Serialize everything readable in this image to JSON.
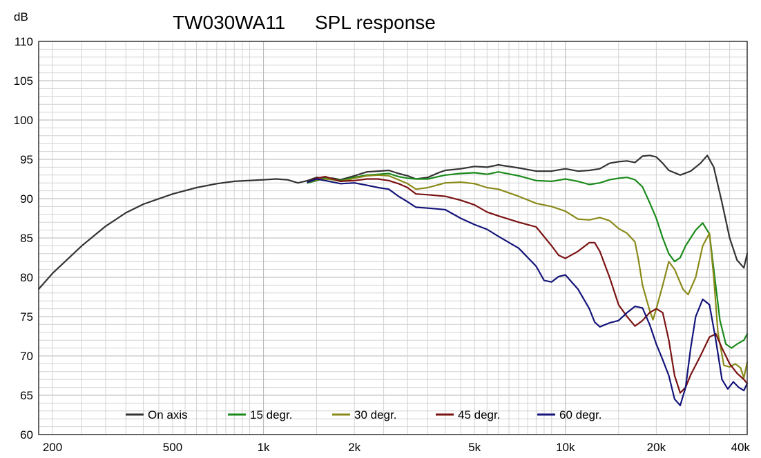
{
  "chart_data": {
    "type": "line",
    "title": "TW030WA11",
    "subtitle": "SPL response",
    "ylabel": "dB",
    "xscale": "log",
    "xlim": [
      180,
      40000
    ],
    "ylim": [
      60,
      110
    ],
    "yticks": [
      60,
      65,
      70,
      75,
      80,
      85,
      90,
      95,
      100,
      105,
      110
    ],
    "xticks": [
      {
        "value": 200,
        "label": "200"
      },
      {
        "value": 500,
        "label": "500"
      },
      {
        "value": 1000,
        "label": "1k"
      },
      {
        "value": 2000,
        "label": "2k"
      },
      {
        "value": 5000,
        "label": "5k"
      },
      {
        "value": 10000,
        "label": "10k"
      },
      {
        "value": 20000,
        "label": "20k"
      },
      {
        "value": 40000,
        "label": "40k"
      }
    ],
    "grid": true,
    "legend_position": "bottom",
    "series": [
      {
        "name": "On axis",
        "color": "#333333",
        "points": [
          [
            180,
            78.5
          ],
          [
            200,
            80.5
          ],
          [
            250,
            84
          ],
          [
            300,
            86.5
          ],
          [
            350,
            88.2
          ],
          [
            400,
            89.3
          ],
          [
            500,
            90.6
          ],
          [
            600,
            91.4
          ],
          [
            700,
            91.9
          ],
          [
            800,
            92.2
          ],
          [
            1000,
            92.4
          ],
          [
            1100,
            92.5
          ],
          [
            1200,
            92.4
          ],
          [
            1300,
            92.0
          ],
          [
            1400,
            92.3
          ],
          [
            1500,
            92.7
          ],
          [
            1600,
            92.6
          ],
          [
            1700,
            92.6
          ],
          [
            1800,
            92.4
          ],
          [
            2000,
            92.9
          ],
          [
            2200,
            93.4
          ],
          [
            2400,
            93.5
          ],
          [
            2600,
            93.6
          ],
          [
            2800,
            93.2
          ],
          [
            3000,
            92.9
          ],
          [
            3200,
            92.5
          ],
          [
            3500,
            92.7
          ],
          [
            3800,
            93.3
          ],
          [
            4000,
            93.6
          ],
          [
            4500,
            93.8
          ],
          [
            5000,
            94.1
          ],
          [
            5500,
            94.0
          ],
          [
            6000,
            94.3
          ],
          [
            7000,
            93.9
          ],
          [
            8000,
            93.5
          ],
          [
            9000,
            93.5
          ],
          [
            10000,
            93.8
          ],
          [
            11000,
            93.5
          ],
          [
            12000,
            93.6
          ],
          [
            13000,
            93.8
          ],
          [
            14000,
            94.5
          ],
          [
            15000,
            94.7
          ],
          [
            16000,
            94.8
          ],
          [
            17000,
            94.6
          ],
          [
            18000,
            95.4
          ],
          [
            19000,
            95.5
          ],
          [
            20000,
            95.3
          ],
          [
            21000,
            94.5
          ],
          [
            22000,
            93.6
          ],
          [
            24000,
            93.0
          ],
          [
            26000,
            93.5
          ],
          [
            28000,
            94.5
          ],
          [
            29500,
            95.5
          ],
          [
            31000,
            94.0
          ],
          [
            33000,
            89.5
          ],
          [
            35000,
            85
          ],
          [
            37000,
            82.2
          ],
          [
            39000,
            81.2
          ],
          [
            40000,
            83.0
          ]
        ]
      },
      {
        "name": "15 degr.",
        "color": "#1a8a1a",
        "points": [
          [
            1400,
            92.0
          ],
          [
            1500,
            92.3
          ],
          [
            1600,
            92.6
          ],
          [
            1700,
            92.5
          ],
          [
            1800,
            92.3
          ],
          [
            2000,
            92.7
          ],
          [
            2200,
            93.0
          ],
          [
            2400,
            93.1
          ],
          [
            2600,
            93.2
          ],
          [
            2800,
            92.8
          ],
          [
            3000,
            92.6
          ],
          [
            3200,
            92.5
          ],
          [
            3500,
            92.5
          ],
          [
            4000,
            93.0
          ],
          [
            4500,
            93.2
          ],
          [
            5000,
            93.3
          ],
          [
            5500,
            93.1
          ],
          [
            6000,
            93.4
          ],
          [
            7000,
            92.9
          ],
          [
            8000,
            92.3
          ],
          [
            9000,
            92.2
          ],
          [
            10000,
            92.5
          ],
          [
            11000,
            92.2
          ],
          [
            12000,
            91.8
          ],
          [
            13000,
            92.0
          ],
          [
            14000,
            92.4
          ],
          [
            15000,
            92.6
          ],
          [
            16000,
            92.7
          ],
          [
            17000,
            92.4
          ],
          [
            18000,
            91.5
          ],
          [
            19000,
            89.5
          ],
          [
            20000,
            87.5
          ],
          [
            21000,
            85
          ],
          [
            22000,
            83
          ],
          [
            23000,
            82
          ],
          [
            24000,
            82.5
          ],
          [
            25000,
            84
          ],
          [
            27000,
            86
          ],
          [
            28500,
            86.9
          ],
          [
            30000,
            85.5
          ],
          [
            31000,
            81
          ],
          [
            32500,
            74.5
          ],
          [
            34000,
            71.5
          ],
          [
            35500,
            71
          ],
          [
            37000,
            71.5
          ],
          [
            39000,
            72
          ],
          [
            40000,
            72.8
          ]
        ]
      },
      {
        "name": "30 degr.",
        "color": "#8a8a1a",
        "points": [
          [
            1400,
            92.1
          ],
          [
            1500,
            92.4
          ],
          [
            1600,
            92.5
          ],
          [
            1700,
            92.4
          ],
          [
            1800,
            92.2
          ],
          [
            2000,
            92.6
          ],
          [
            2200,
            92.9
          ],
          [
            2400,
            93.0
          ],
          [
            2600,
            92.9
          ],
          [
            2800,
            92.4
          ],
          [
            3000,
            91.9
          ],
          [
            3200,
            91.2
          ],
          [
            3500,
            91.4
          ],
          [
            4000,
            92.0
          ],
          [
            4500,
            92.1
          ],
          [
            5000,
            91.9
          ],
          [
            5500,
            91.4
          ],
          [
            6000,
            91.2
          ],
          [
            7000,
            90.3
          ],
          [
            8000,
            89.4
          ],
          [
            9000,
            89.0
          ],
          [
            10000,
            88.4
          ],
          [
            11000,
            87.4
          ],
          [
            12000,
            87.3
          ],
          [
            13000,
            87.6
          ],
          [
            14000,
            87.2
          ],
          [
            15000,
            86.2
          ],
          [
            16000,
            85.6
          ],
          [
            17000,
            84.5
          ],
          [
            17500,
            82
          ],
          [
            18000,
            79
          ],
          [
            19000,
            75.8
          ],
          [
            19500,
            74.6
          ],
          [
            20000,
            76
          ],
          [
            21000,
            79
          ],
          [
            22000,
            82
          ],
          [
            23000,
            81
          ],
          [
            24500,
            78.5
          ],
          [
            25500,
            77.8
          ],
          [
            27000,
            80
          ],
          [
            28500,
            84
          ],
          [
            30000,
            85.6
          ],
          [
            31000,
            80
          ],
          [
            32000,
            73
          ],
          [
            33500,
            68.8
          ],
          [
            35000,
            68.6
          ],
          [
            36500,
            69
          ],
          [
            38000,
            68.5
          ],
          [
            39000,
            67.2
          ],
          [
            40000,
            69.2
          ]
        ]
      },
      {
        "name": "45 degr.",
        "color": "#7a1212",
        "points": [
          [
            1400,
            92.1
          ],
          [
            1500,
            92.6
          ],
          [
            1600,
            92.8
          ],
          [
            1700,
            92.5
          ],
          [
            1800,
            92.2
          ],
          [
            2000,
            92.3
          ],
          [
            2200,
            92.5
          ],
          [
            2400,
            92.5
          ],
          [
            2600,
            92.3
          ],
          [
            2800,
            91.9
          ],
          [
            3000,
            91.4
          ],
          [
            3200,
            90.6
          ],
          [
            3500,
            90.5
          ],
          [
            4000,
            90.3
          ],
          [
            4500,
            89.8
          ],
          [
            5000,
            89.2
          ],
          [
            5500,
            88.3
          ],
          [
            6000,
            87.8
          ],
          [
            7000,
            87.0
          ],
          [
            8000,
            86.4
          ],
          [
            9000,
            84.0
          ],
          [
            9500,
            82.8
          ],
          [
            10000,
            82.4
          ],
          [
            11000,
            83.3
          ],
          [
            12000,
            84.4
          ],
          [
            12500,
            84.4
          ],
          [
            13000,
            83.3
          ],
          [
            14000,
            80
          ],
          [
            15000,
            76.5
          ],
          [
            16000,
            75
          ],
          [
            17000,
            73.8
          ],
          [
            18000,
            74.5
          ],
          [
            19000,
            75.5
          ],
          [
            20000,
            76.0
          ],
          [
            21000,
            75.5
          ],
          [
            22000,
            72
          ],
          [
            23000,
            67.5
          ],
          [
            24000,
            65.3
          ],
          [
            25000,
            66
          ],
          [
            26000,
            67.6
          ],
          [
            28000,
            70
          ],
          [
            30000,
            72.4
          ],
          [
            31500,
            72.8
          ],
          [
            33000,
            71
          ],
          [
            35000,
            69
          ],
          [
            37000,
            67.8
          ],
          [
            39000,
            67
          ],
          [
            40000,
            66.5
          ]
        ]
      },
      {
        "name": "60 degr.",
        "color": "#14147a",
        "points": [
          [
            1400,
            92.1
          ],
          [
            1500,
            92.5
          ],
          [
            1600,
            92.3
          ],
          [
            1700,
            92.1
          ],
          [
            1800,
            91.9
          ],
          [
            2000,
            92.0
          ],
          [
            2200,
            91.7
          ],
          [
            2400,
            91.4
          ],
          [
            2600,
            91.2
          ],
          [
            2800,
            90.3
          ],
          [
            3000,
            89.6
          ],
          [
            3200,
            88.9
          ],
          [
            3500,
            88.8
          ],
          [
            4000,
            88.6
          ],
          [
            4500,
            87.5
          ],
          [
            5000,
            86.7
          ],
          [
            5500,
            86.1
          ],
          [
            6000,
            85.2
          ],
          [
            7000,
            83.7
          ],
          [
            8000,
            81.4
          ],
          [
            8500,
            79.6
          ],
          [
            9000,
            79.4
          ],
          [
            9500,
            80.1
          ],
          [
            10000,
            80.3
          ],
          [
            11000,
            78.5
          ],
          [
            12000,
            76
          ],
          [
            12500,
            74.3
          ],
          [
            13000,
            73.7
          ],
          [
            14000,
            74.2
          ],
          [
            15000,
            74.5
          ],
          [
            16000,
            75.5
          ],
          [
            17000,
            76.3
          ],
          [
            18000,
            76.1
          ],
          [
            19000,
            74
          ],
          [
            20000,
            71.5
          ],
          [
            21000,
            69.5
          ],
          [
            22000,
            67.5
          ],
          [
            23000,
            64.5
          ],
          [
            24000,
            63.7
          ],
          [
            25000,
            66
          ],
          [
            26000,
            71
          ],
          [
            27000,
            75
          ],
          [
            28500,
            77.2
          ],
          [
            30000,
            76.5
          ],
          [
            31500,
            72
          ],
          [
            33000,
            67
          ],
          [
            34500,
            65.8
          ],
          [
            36000,
            66.7
          ],
          [
            37500,
            66
          ],
          [
            39000,
            65.6
          ],
          [
            40000,
            66.5
          ]
        ]
      }
    ]
  }
}
